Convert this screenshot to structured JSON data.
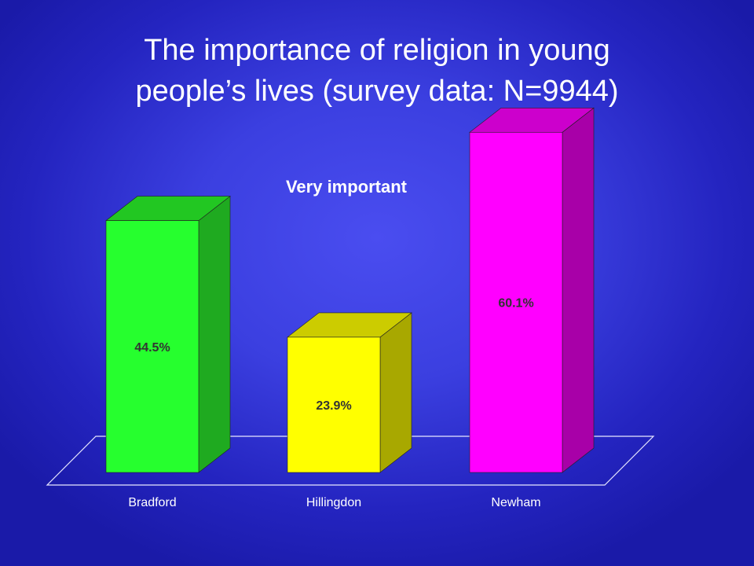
{
  "slide": {
    "title_line1": "The importance of religion in young",
    "title_line2": "people’s lives (survey data: N=9944)"
  },
  "chart_data": {
    "type": "bar",
    "title": "Very important",
    "categories": [
      "Bradford",
      "Hillingdon",
      "Newham"
    ],
    "values": [
      44.5,
      23.9,
      60.1
    ],
    "data_labels": [
      "44.5%",
      "23.9%",
      "60.1%"
    ],
    "ylim": [
      0,
      70
    ],
    "grid": false,
    "colors": {
      "Bradford": {
        "front": "#26ff2e",
        "side": "#1faa20",
        "top": "#22c722"
      },
      "Hillingdon": {
        "front": "#ffff00",
        "side": "#a8a800",
        "top": "#cccc00"
      },
      "Newham": {
        "front": "#ff00ff",
        "side": "#a800a8",
        "top": "#cc00cc"
      }
    }
  },
  "colors": {
    "background": "#3b3fe0",
    "text": "#ffffff",
    "label_text": "#333333"
  }
}
